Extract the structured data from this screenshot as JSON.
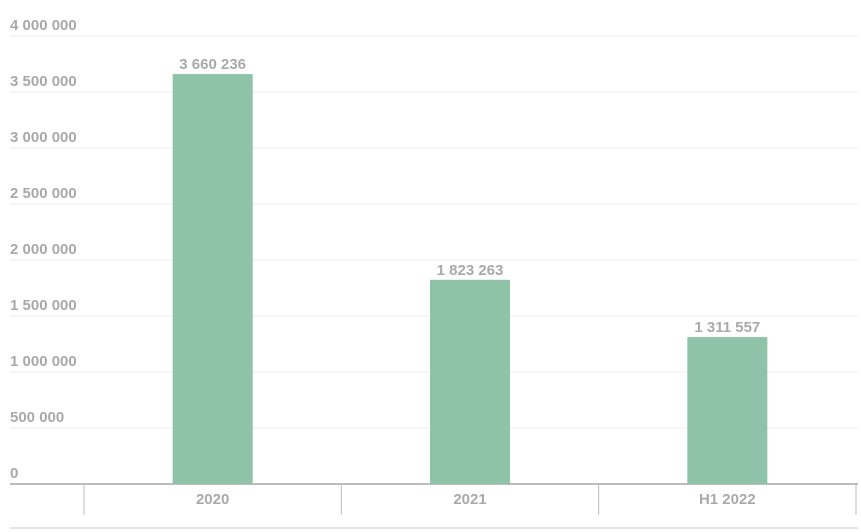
{
  "chart_data": {
    "type": "bar",
    "categories": [
      "2020",
      "2021",
      "H1 2022"
    ],
    "values": [
      3660236,
      1823263,
      1311557
    ],
    "value_labels": [
      "3 660 236",
      "1 823 263",
      "1 311 557"
    ],
    "color": "#8fc3a7",
    "ylim": [
      0,
      4000000
    ],
    "yticks": [
      0,
      {
        "value": 500000,
        "label": "500 000"
      },
      {
        "value": 1000000,
        "label": "1 000 000"
      },
      {
        "value": 1500000,
        "label": "1 500 000"
      },
      {
        "value": 2000000,
        "label": "2 000 000"
      },
      {
        "value": 2500000,
        "label": "2 500 000"
      },
      {
        "value": 3000000,
        "label": "3 000 000"
      },
      {
        "value": 3500000,
        "label": "3 500 000"
      },
      {
        "value": 4000000,
        "label": "4 000 000"
      }
    ],
    "grid": true
  }
}
